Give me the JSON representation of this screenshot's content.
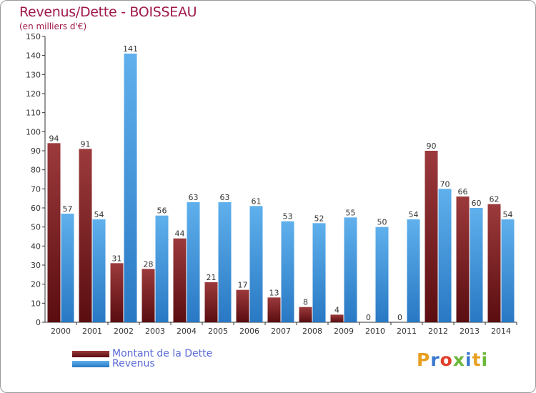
{
  "header": {
    "title": "Revenus/Dette - BOISSEAU",
    "subtitle": "(en milliers d'€)"
  },
  "legend": {
    "debt_label": "Montant de la Dette",
    "revenue_label": "Revenus"
  },
  "logo": {
    "text": "Proxiti"
  },
  "colors": {
    "debt_dark": "#5a0d10",
    "debt_light": "#9c3a3c",
    "revenue_dark": "#2878c4",
    "revenue_light": "#5fb0ec",
    "title": "#a0184a",
    "legend_text": "#5a6ad6"
  },
  "chart_data": {
    "type": "bar",
    "title": "Revenus/Dette - BOISSEAU",
    "subtitle": "(en milliers d'€)",
    "categories": [
      "2000",
      "2001",
      "2002",
      "2003",
      "2004",
      "2005",
      "2006",
      "2007",
      "2008",
      "2009",
      "2010",
      "2011",
      "2012",
      "2013",
      "2014"
    ],
    "series": [
      {
        "name": "Montant de la Dette",
        "values": [
          94,
          91,
          31,
          28,
          44,
          21,
          17,
          13,
          8,
          4,
          0,
          0,
          90,
          66,
          62
        ]
      },
      {
        "name": "Revenus",
        "values": [
          57,
          54,
          141,
          56,
          63,
          63,
          61,
          53,
          52,
          55,
          50,
          54,
          70,
          60,
          54
        ]
      }
    ],
    "ylim": [
      0,
      150
    ],
    "yticks": [
      0,
      10,
      20,
      30,
      40,
      50,
      60,
      70,
      80,
      90,
      100,
      110,
      120,
      130,
      140,
      150
    ],
    "grid": false,
    "legend_position": "bottom-left"
  }
}
